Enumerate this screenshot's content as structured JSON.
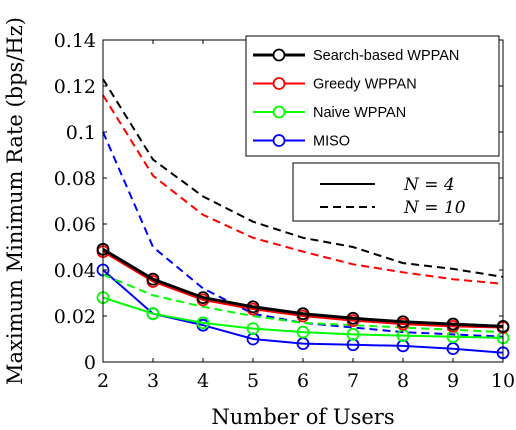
{
  "chart_data": {
    "type": "line",
    "xlabel": "Number of Users",
    "ylabel": "Maximum Minimum Rate (bps/Hz)",
    "xlim": [
      2,
      10
    ],
    "ylim": [
      0,
      0.14
    ],
    "x": [
      2,
      3,
      4,
      5,
      6,
      7,
      8,
      9,
      10
    ],
    "x_ticks": [
      "2",
      "3",
      "4",
      "5",
      "6",
      "7",
      "8",
      "9",
      "10"
    ],
    "y_ticks": [
      0,
      0.02,
      0.04,
      0.06,
      0.08,
      0.1,
      0.12,
      0.14
    ],
    "y_tick_labels": [
      "0",
      "0.02",
      "0.04",
      "0.06",
      "0.08",
      "0.1",
      "0.12",
      "0.14"
    ],
    "grid": false,
    "legend_position": "top-right",
    "series": [
      {
        "name": "Search-based WPPAN",
        "color": "#000000",
        "width": 3,
        "dash": "solid",
        "N": 4,
        "values": [
          0.049,
          0.036,
          0.028,
          0.024,
          0.021,
          0.019,
          0.0175,
          0.0165,
          0.0155
        ]
      },
      {
        "name": "Search-based WPPAN",
        "color": "#000000",
        "width": 2,
        "dash": "dashed",
        "N": 10,
        "values": [
          0.123,
          0.088,
          0.072,
          0.061,
          0.054,
          0.05,
          0.043,
          0.0405,
          0.037
        ]
      },
      {
        "name": "Greedy WPPAN",
        "color": "#ff0000",
        "width": 2,
        "dash": "solid",
        "N": 4,
        "values": [
          0.048,
          0.035,
          0.027,
          0.023,
          0.02,
          0.018,
          0.0165,
          0.0155,
          0.015
        ]
      },
      {
        "name": "Greedy WPPAN",
        "color": "#ff0000",
        "width": 2,
        "dash": "dashed",
        "N": 10,
        "values": [
          0.116,
          0.081,
          0.064,
          0.054,
          0.048,
          0.0425,
          0.039,
          0.036,
          0.034
        ]
      },
      {
        "name": "Naive WPPAN",
        "color": "#00ff00",
        "width": 2,
        "dash": "solid",
        "N": 4,
        "values": [
          0.028,
          0.021,
          0.017,
          0.0145,
          0.013,
          0.012,
          0.0115,
          0.011,
          0.0105
        ]
      },
      {
        "name": "Naive WPPAN",
        "color": "#00ff00",
        "width": 2,
        "dash": "dashed",
        "N": 10,
        "values": [
          0.038,
          0.029,
          0.024,
          0.02,
          0.017,
          0.016,
          0.015,
          0.014,
          0.013
        ]
      },
      {
        "name": "MISO",
        "color": "#0000ff",
        "width": 2,
        "dash": "solid",
        "N": 4,
        "values": [
          0.04,
          0.021,
          0.016,
          0.01,
          0.008,
          0.0075,
          0.007,
          0.0058,
          0.004
        ]
      },
      {
        "name": "MISO",
        "color": "#0000ff",
        "width": 2,
        "dash": "dashed",
        "N": 10,
        "values": [
          0.1,
          0.05,
          0.032,
          0.021,
          0.017,
          0.015,
          0.013,
          0.012,
          0.011
        ]
      }
    ],
    "legend_entries": [
      {
        "label": "Search-based WPPAN",
        "color": "#000000"
      },
      {
        "label": "Greedy WPPAN",
        "color": "#ff0000"
      },
      {
        "label": "Naive WPPAN",
        "color": "#00ff00"
      },
      {
        "label": "MISO",
        "color": "#0000ff"
      }
    ],
    "n_legend": [
      {
        "label": "N = 4",
        "dash": "solid"
      },
      {
        "label": "N = 10",
        "dash": "dashed"
      }
    ]
  }
}
